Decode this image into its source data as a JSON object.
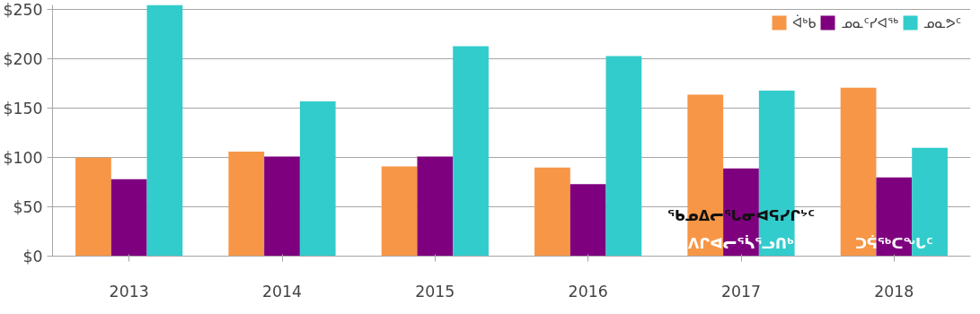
{
  "chart_data": {
    "type": "bar",
    "categories": [
      "2013",
      "2014",
      "2015",
      "2016",
      "2017",
      "2018"
    ],
    "series": [
      {
        "name": "ᐋᒃᑲ",
        "color": "#f79646",
        "values": [
          100,
          106,
          91,
          90,
          164,
          171
        ]
      },
      {
        "name": "ᓄᓇᑦᓯᐊᖅ",
        "color": "#7f007f",
        "values": [
          78,
          101,
          101,
          73,
          89,
          80
        ]
      },
      {
        "name": "ᓄᓇᕗᑦ",
        "color": "#33cccc",
        "values": [
          255,
          157,
          213,
          203,
          168,
          110
        ]
      }
    ],
    "ylim": [
      0,
      255
    ],
    "yticks": [
      {
        "value": 0,
        "label": "$0"
      },
      {
        "value": 50,
        "label": "$50"
      },
      {
        "value": 100,
        "label": "$100"
      },
      {
        "value": 150,
        "label": "$150"
      },
      {
        "value": 200,
        "label": "$200"
      },
      {
        "value": 250,
        "label": "$250"
      }
    ],
    "grid": "y",
    "legend": "top right",
    "annotations": [
      "ᐱᒋᐊᓕᕐᓵᕐᓗᑎᒃ",
      "ᖃᓄᐃᓕᕐᒐᓂᐊᕋᓯᒋᔾᑦ",
      "ᑐᕌᖅᑕᖓᑦ"
    ]
  }
}
